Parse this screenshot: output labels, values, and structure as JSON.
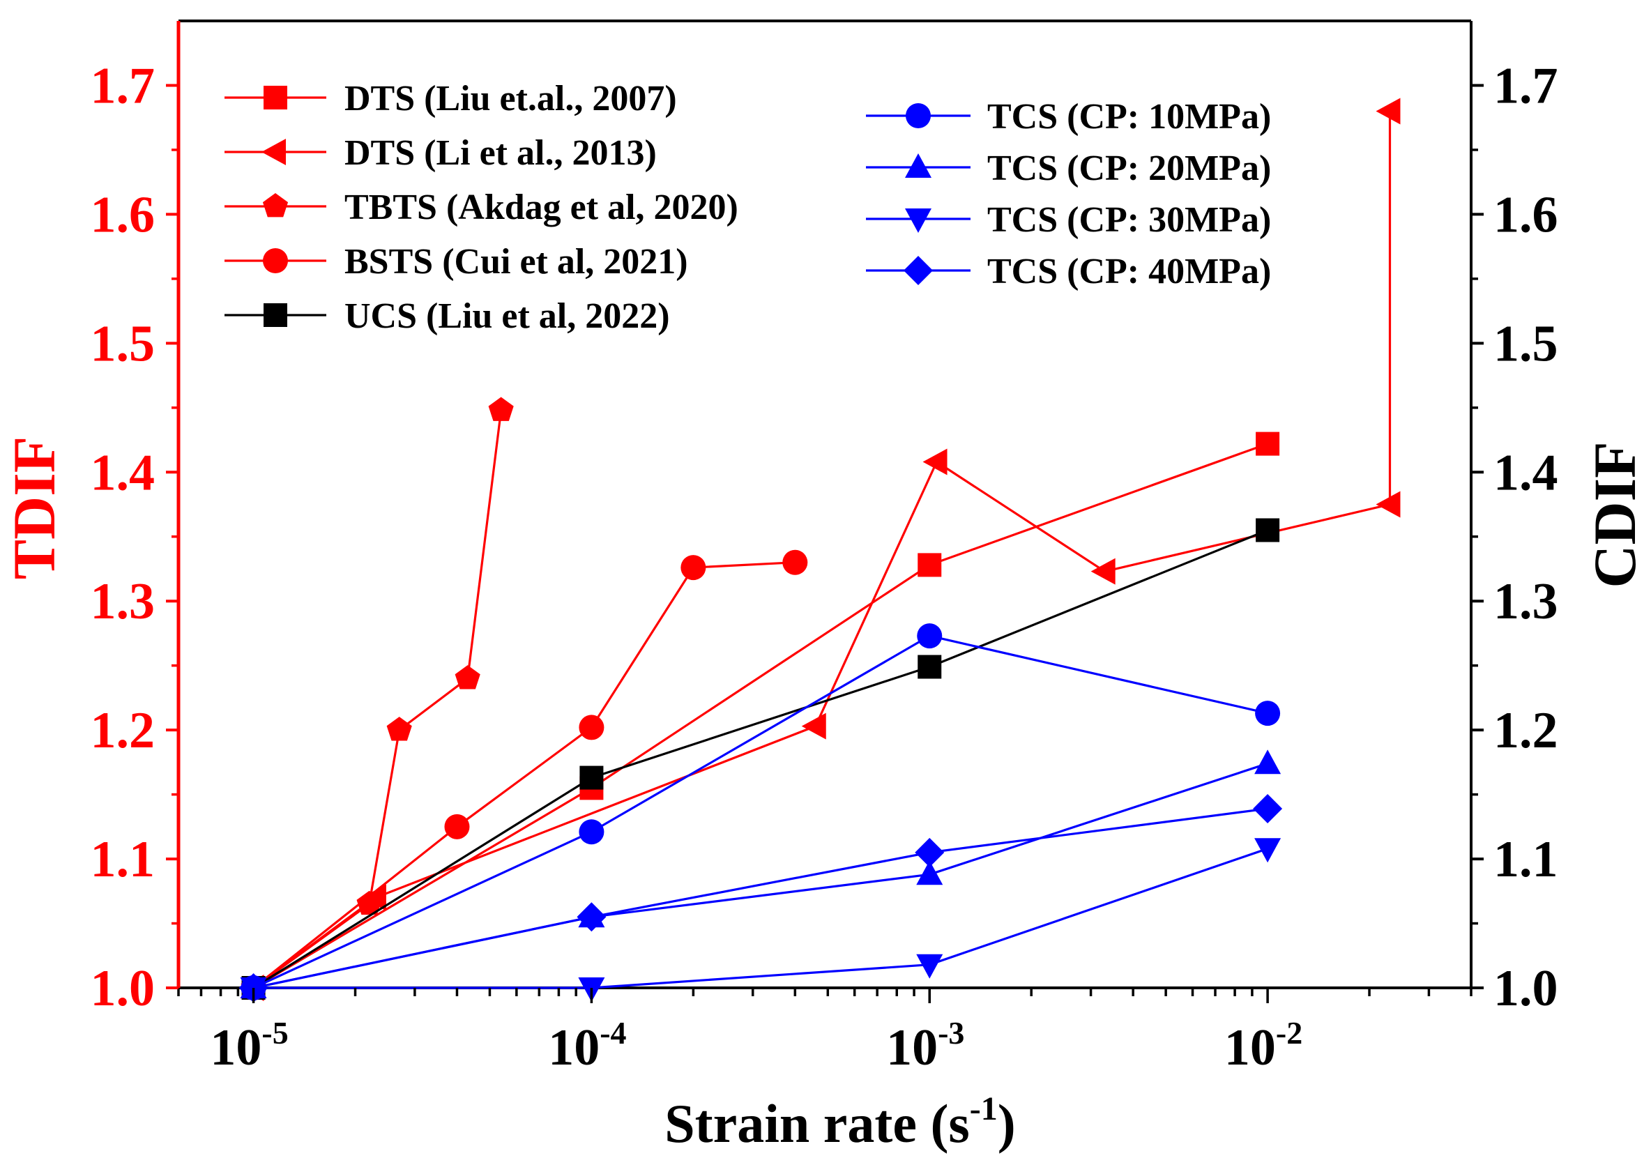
{
  "chart_data": {
    "type": "line",
    "xlabel": "Strain rate",
    "xlabel_unit": "(s",
    "xlabel_unit_exp": "-1",
    "xlabel_unit_close": ")",
    "xscale": "log",
    "xlim": [
      6e-06,
      0.04
    ],
    "ylabel_left": "TDIF",
    "ylabel_right": "CDIF",
    "ylim": [
      1.0,
      1.75
    ],
    "x_ticks": [
      {
        "base": "10",
        "exp": "-5",
        "value": 1e-05
      },
      {
        "base": "10",
        "exp": "-4",
        "value": 0.0001
      },
      {
        "base": "10",
        "exp": "-3",
        "value": 0.001
      },
      {
        "base": "10",
        "exp": "-2",
        "value": 0.01
      }
    ],
    "y_ticks": [
      "1.0",
      "1.1",
      "1.2",
      "1.3",
      "1.4",
      "1.5",
      "1.6",
      "1.7"
    ],
    "legend_left_position": "top-left",
    "legend_right_position": "top-center",
    "series": [
      {
        "name": "DTS (Liu et.al., 2007)",
        "color": "#ff0000",
        "marker": "square",
        "legend": "left",
        "x": [
          1e-05,
          0.0001,
          0.001,
          0.01
        ],
        "y": [
          1.0,
          1.155,
          1.328,
          1.422
        ]
      },
      {
        "name": "DTS (Li et al., 2013)",
        "color": "#ff0000",
        "marker": "triangle-left",
        "legend": "left",
        "x": [
          1e-05,
          2.3e-05,
          0.00046,
          0.00105,
          0.0033,
          0.023,
          0.023
        ],
        "y": [
          1.0,
          1.07,
          1.203,
          1.408,
          1.323,
          1.375,
          1.68
        ]
      },
      {
        "name": "TBTS (Akdag et al, 2020)",
        "color": "#ff0000",
        "marker": "pentagon",
        "legend": "left",
        "x": [
          1e-05,
          2.2e-05,
          2.7e-05,
          4.3e-05,
          5.4e-05
        ],
        "y": [
          1.0,
          1.065,
          1.2,
          1.24,
          1.448
        ]
      },
      {
        "name": "BSTS (Cui et al, 2021)",
        "color": "#ff0000",
        "marker": "circle",
        "legend": "left",
        "x": [
          1e-05,
          4e-05,
          0.0001,
          0.0002,
          0.0004
        ],
        "y": [
          1.0,
          1.125,
          1.202,
          1.326,
          1.33
        ]
      },
      {
        "name": "UCS (Liu et al, 2022)",
        "color": "#000000",
        "marker": "square",
        "legend": "left",
        "x": [
          1e-05,
          0.0001,
          0.001,
          0.01
        ],
        "y": [
          1.0,
          1.163,
          1.249,
          1.355
        ]
      },
      {
        "name": "TCS (CP: 10MPa)",
        "color": "#0000ff",
        "marker": "circle",
        "legend": "right",
        "x": [
          1e-05,
          0.0001,
          0.001,
          0.01
        ],
        "y": [
          1.0,
          1.121,
          1.273,
          1.213
        ]
      },
      {
        "name": "TCS (CP: 20MPa)",
        "color": "#0000ff",
        "marker": "triangle-up",
        "legend": "right",
        "x": [
          1e-05,
          0.0001,
          0.001,
          0.01
        ],
        "y": [
          1.0,
          1.055,
          1.088,
          1.174
        ]
      },
      {
        "name": "TCS (CP: 30MPa)",
        "color": "#0000ff",
        "marker": "triangle-down",
        "legend": "right",
        "x": [
          1e-05,
          0.0001,
          0.001,
          0.01
        ],
        "y": [
          1.0,
          1.0,
          1.018,
          1.108
        ]
      },
      {
        "name": "TCS (CP: 40MPa)",
        "color": "#0000ff",
        "marker": "diamond",
        "legend": "right",
        "x": [
          1e-05,
          0.0001,
          0.001,
          0.01
        ],
        "y": [
          1.0,
          1.055,
          1.105,
          1.139
        ]
      }
    ],
    "colors": {
      "left_axis": "#ff0000",
      "right_axis": "#000000",
      "frame": "#000000"
    }
  }
}
